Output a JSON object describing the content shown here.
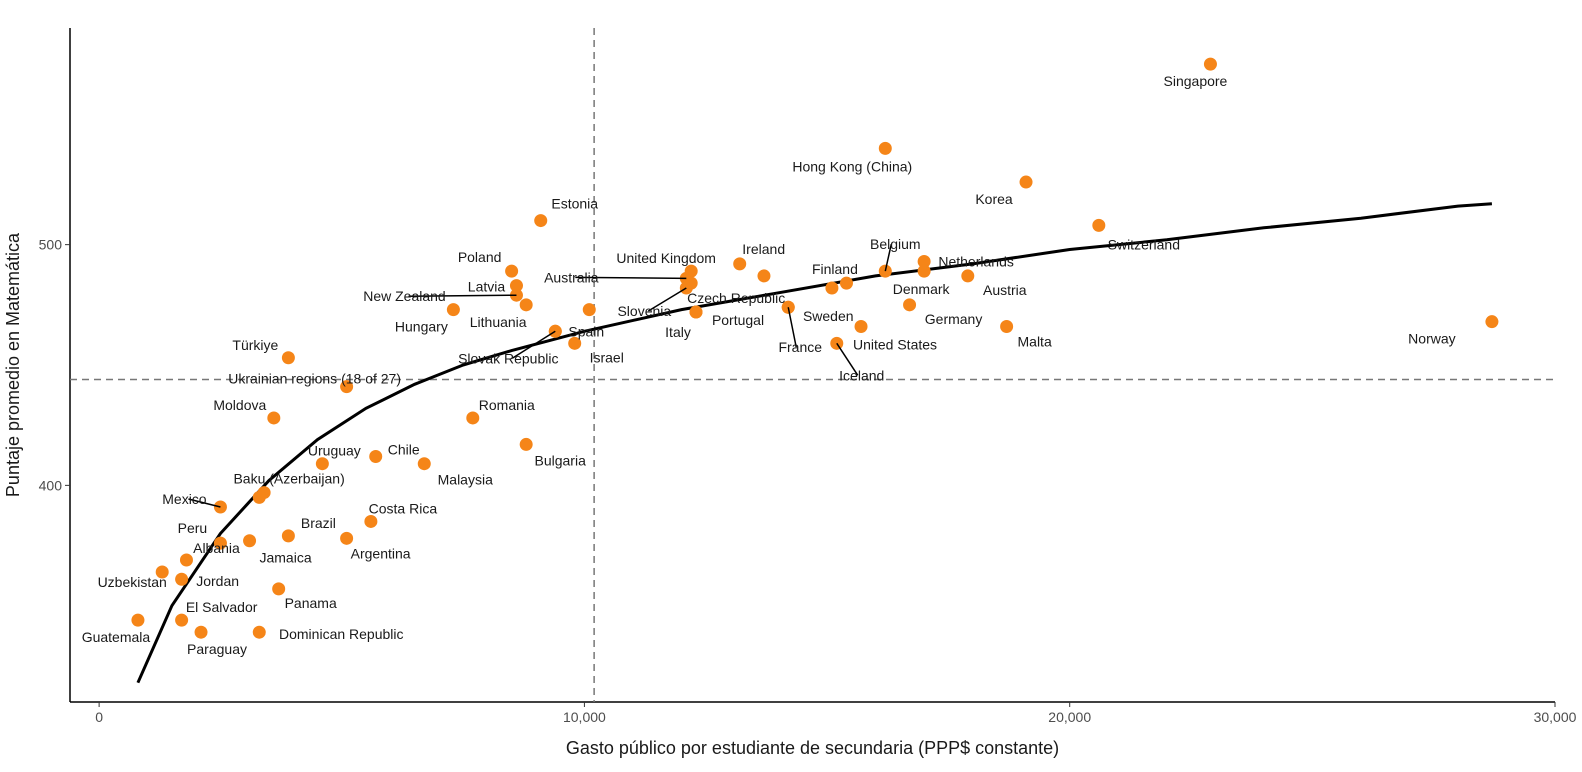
{
  "chart_data": {
    "type": "scatter",
    "xlabel": "Gasto público por estudiante de secundaria (PPP$ constante)",
    "ylabel": "Puntaje promedio en Matemática",
    "xlim": [
      -600,
      30000
    ],
    "ylim": [
      310,
      590
    ],
    "x_ticks": [
      0,
      10000,
      20000,
      30000
    ],
    "x_tick_labels": [
      "0",
      "10,000",
      "20,000",
      "30,000"
    ],
    "y_ticks": [
      400,
      500
    ],
    "y_tick_labels": [
      "400",
      "500"
    ],
    "grid": false,
    "point_color": "#F58518",
    "reference_lines": {
      "x": 10200,
      "y": 444
    },
    "trend_curve": {
      "label": "",
      "x": [
        800,
        1500,
        2500,
        3500,
        4500,
        5500,
        6500,
        7500,
        8500,
        10000,
        12000,
        14000,
        16000,
        18000,
        20000,
        22000,
        24000,
        26000,
        28000,
        28700
      ],
      "y": [
        318,
        350,
        380,
        402,
        419,
        432,
        442,
        450,
        456,
        464,
        473,
        480,
        487,
        492,
        498,
        502,
        507,
        511,
        516,
        517
      ]
    },
    "points": [
      {
        "name": "Singapore",
        "x": 22900,
        "y": 575,
        "dx": -15,
        "dy": 22,
        "anchor": "middle"
      },
      {
        "name": "Hong Kong (China)",
        "x": 16200,
        "y": 540,
        "dx": -33,
        "dy": 23,
        "anchor": "middle"
      },
      {
        "name": "Korea",
        "x": 19100,
        "y": 526,
        "dx": -32,
        "dy": 22,
        "anchor": "middle"
      },
      {
        "name": "Switzerland",
        "x": 20600,
        "y": 508,
        "dx": 45,
        "dy": 24,
        "anchor": "middle"
      },
      {
        "name": "Estonia",
        "x": 9100,
        "y": 510,
        "dx": 34,
        "dy": -12,
        "anchor": "middle"
      },
      {
        "name": "Belgium",
        "x": 16200,
        "y": 489,
        "dx": 10,
        "dy": -22,
        "anchor": "middle",
        "leader": true
      },
      {
        "name": "Netherlands",
        "x": 17000,
        "y": 493,
        "dx": 52,
        "dy": 5,
        "anchor": "middle"
      },
      {
        "name": "Denmark",
        "x": 17000,
        "y": 489,
        "dx": -3,
        "dy": 23,
        "anchor": "middle"
      },
      {
        "name": "Austria",
        "x": 17900,
        "y": 487,
        "dx": 37,
        "dy": 19,
        "anchor": "middle"
      },
      {
        "name": "Ireland",
        "x": 13200,
        "y": 492,
        "dx": 24,
        "dy": -10,
        "anchor": "middle"
      },
      {
        "name": "Finland",
        "x": 15100,
        "y": 482,
        "dx": 3,
        "dy": -14,
        "anchor": "middle"
      },
      {
        "name": "",
        "x": 15400,
        "y": 484
      },
      {
        "name": "",
        "x": 13700,
        "y": 487
      },
      {
        "name": "United Kingdom",
        "x": 12200,
        "y": 489,
        "dx": -25,
        "dy": -8,
        "anchor": "middle"
      },
      {
        "name": "Australia",
        "x": 12100,
        "y": 486,
        "dx": -115,
        "dy": 4,
        "anchor": "middle",
        "leader": true
      },
      {
        "name": "Czech Republic",
        "x": 12200,
        "y": 484,
        "dx": 45,
        "dy": 20,
        "anchor": "middle"
      },
      {
        "name": "Slovenia",
        "x": 12100,
        "y": 482,
        "dx": -42,
        "dy": 28,
        "anchor": "middle",
        "leader": true
      },
      {
        "name": "Portugal",
        "x": 12300,
        "y": 472,
        "dx": 42,
        "dy": 13,
        "anchor": "middle"
      },
      {
        "name": "Italy",
        "x": 12300,
        "y": 472,
        "dx": -18,
        "dy": 25,
        "anchor": "middle"
      },
      {
        "name": "Sweden",
        "x": 14200,
        "y": 474,
        "dx": 40,
        "dy": 14,
        "anchor": "middle"
      },
      {
        "name": "France",
        "x": 14200,
        "y": 474,
        "dx": 12,
        "dy": 45,
        "anchor": "middle",
        "leader": true
      },
      {
        "name": "Germany",
        "x": 16700,
        "y": 475,
        "dx": 44,
        "dy": 19,
        "anchor": "middle"
      },
      {
        "name": "United States",
        "x": 15700,
        "y": 466,
        "dx": 34,
        "dy": 23,
        "anchor": "middle"
      },
      {
        "name": "Iceland",
        "x": 15200,
        "y": 459,
        "dx": 25,
        "dy": 37,
        "anchor": "middle",
        "leader": true
      },
      {
        "name": "Malta",
        "x": 18700,
        "y": 466,
        "dx": 28,
        "dy": 20,
        "anchor": "middle"
      },
      {
        "name": "Norway",
        "x": 28700,
        "y": 468,
        "dx": -60,
        "dy": 22,
        "anchor": "middle"
      },
      {
        "name": "Poland",
        "x": 8500,
        "y": 489,
        "dx": -32,
        "dy": -9,
        "anchor": "middle"
      },
      {
        "name": "Latvia",
        "x": 8600,
        "y": 483,
        "dx": -30,
        "dy": 6,
        "anchor": "middle"
      },
      {
        "name": "New Zealand",
        "x": 8600,
        "y": 479,
        "dx": -112,
        "dy": 6,
        "anchor": "middle",
        "leader": true
      },
      {
        "name": "Lithuania",
        "x": 8800,
        "y": 475,
        "dx": -28,
        "dy": 22,
        "anchor": "middle"
      },
      {
        "name": "",
        "x": 10100,
        "y": 473
      },
      {
        "name": "Hungary",
        "x": 7300,
        "y": 473,
        "dx": -32,
        "dy": 22,
        "anchor": "middle"
      },
      {
        "name": "Spain",
        "x": 9400,
        "y": 464,
        "dx": 31,
        "dy": 5,
        "anchor": "middle"
      },
      {
        "name": "Slovak Republic",
        "x": 9400,
        "y": 464,
        "dx": -47,
        "dy": 32,
        "anchor": "middle",
        "leader": true
      },
      {
        "name": "Israel",
        "x": 9800,
        "y": 459,
        "dx": 32,
        "dy": 19,
        "anchor": "middle"
      },
      {
        "name": "Türkiye",
        "x": 3900,
        "y": 453,
        "dx": -33,
        "dy": -8,
        "anchor": "middle"
      },
      {
        "name": "Ukrainian regions (18 of 27)",
        "x": 5100,
        "y": 441,
        "dx": -32,
        "dy": -3,
        "anchor": "middle"
      },
      {
        "name": "Moldova",
        "x": 3600,
        "y": 428,
        "dx": -34,
        "dy": -8,
        "anchor": "middle"
      },
      {
        "name": "Romania",
        "x": 7700,
        "y": 428,
        "dx": 34,
        "dy": -8,
        "anchor": "middle"
      },
      {
        "name": "Bulgaria",
        "x": 8800,
        "y": 417,
        "dx": 34,
        "dy": 21,
        "anchor": "middle"
      },
      {
        "name": "Chile",
        "x": 5700,
        "y": 412,
        "dx": 28,
        "dy": -2,
        "anchor": "middle"
      },
      {
        "name": "Uruguay",
        "x": 4600,
        "y": 409,
        "dx": 12,
        "dy": -8,
        "anchor": "middle"
      },
      {
        "name": "Malaysia",
        "x": 6700,
        "y": 409,
        "dx": 41,
        "dy": 21,
        "anchor": "middle"
      },
      {
        "name": "Baku (Azerbaijan)",
        "x": 3400,
        "y": 397,
        "dx": 25,
        "dy": -9,
        "anchor": "middle"
      },
      {
        "name": "",
        "x": 3300,
        "y": 395
      },
      {
        "name": "Mexico",
        "x": 2500,
        "y": 391,
        "dx": -36,
        "dy": -3,
        "anchor": "middle",
        "leader": true
      },
      {
        "name": "Costa Rica",
        "x": 5600,
        "y": 385,
        "dx": 32,
        "dy": -8,
        "anchor": "middle"
      },
      {
        "name": "Brazil",
        "x": 3900,
        "y": 379,
        "dx": 30,
        "dy": -8,
        "anchor": "middle"
      },
      {
        "name": "Argentina",
        "x": 5100,
        "y": 378,
        "dx": 34,
        "dy": 20,
        "anchor": "middle"
      },
      {
        "name": "Jamaica",
        "x": 3100,
        "y": 377,
        "dx": 36,
        "dy": 22,
        "anchor": "middle"
      },
      {
        "name": "Peru",
        "x": 2500,
        "y": 376,
        "dx": -28,
        "dy": -10,
        "anchor": "middle"
      },
      {
        "name": "Albania",
        "x": 1800,
        "y": 369,
        "dx": 30,
        "dy": -7,
        "anchor": "middle"
      },
      {
        "name": "Uzbekistan",
        "x": 1300,
        "y": 364,
        "dx": -30,
        "dy": 15,
        "anchor": "middle"
      },
      {
        "name": "Jordan",
        "x": 1700,
        "y": 361,
        "dx": 36,
        "dy": 7,
        "anchor": "middle"
      },
      {
        "name": "Panama",
        "x": 3700,
        "y": 357,
        "dx": 32,
        "dy": 19,
        "anchor": "middle"
      },
      {
        "name": "El Salvador",
        "x": 1700,
        "y": 344,
        "dx": 40,
        "dy": -8,
        "anchor": "middle"
      },
      {
        "name": "Guatemala",
        "x": 800,
        "y": 344,
        "dx": -22,
        "dy": 22,
        "anchor": "middle"
      },
      {
        "name": "Paraguay",
        "x": 2100,
        "y": 339,
        "dx": 16,
        "dy": 22,
        "anchor": "middle"
      },
      {
        "name": "Dominican Republic",
        "x": 3300,
        "y": 339,
        "dx": 82,
        "dy": 7,
        "anchor": "middle"
      }
    ]
  }
}
